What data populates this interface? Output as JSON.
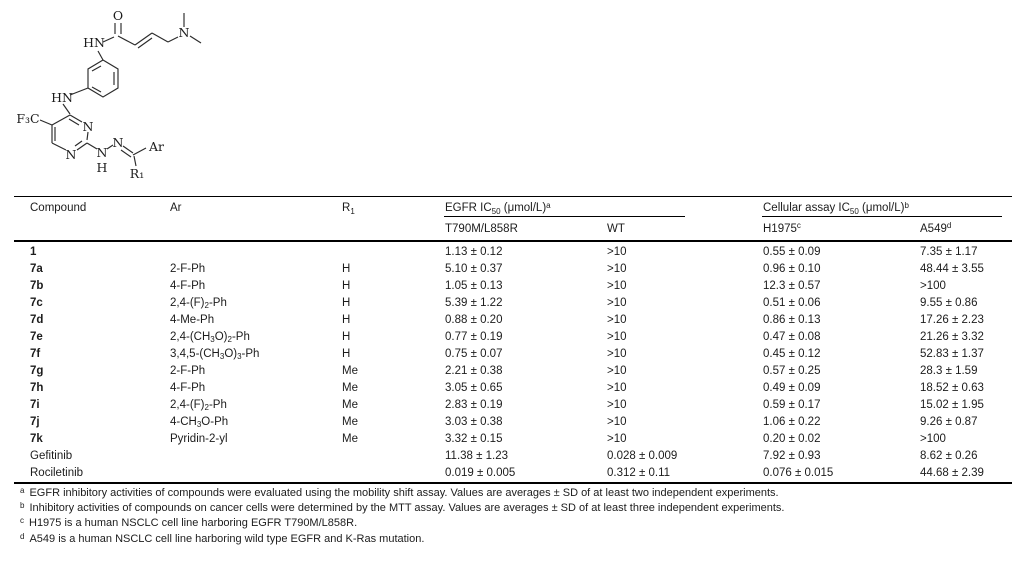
{
  "page": {
    "background": "#ffffff",
    "text_color": "#1c1c1c",
    "rule_color": "#000000"
  },
  "structure_figure": {
    "kind": "chemical-structure-drawing",
    "labels": {
      "carbonyl_oxygen": "O",
      "amide_nh": "HN",
      "dimethylamino_n": "N",
      "aniline_nh": "HN",
      "trifluoromethyl": "F₃C",
      "pyrimidine_n3": "N",
      "pyrimidine_n1": "N",
      "hydrazide_n": "N",
      "hydrazide_h": "H",
      "imine_n": "N",
      "aryl_substituent": "Ar",
      "r1_substituent": "R₁"
    }
  },
  "table": {
    "columns": {
      "compound": "Compound",
      "ar": "Ar",
      "r1": "R<sub>1</sub>",
      "egfr_group": "EGFR IC<sub>50</sub> (μmol/L)<sup>a</sup>",
      "t790m": "T790M/L858R",
      "wt": "WT",
      "cellular_group": "Cellular assay IC<sub>50</sub> (μmol/L)<sup>b</sup>",
      "h1975": "H1975<sup>c</sup>",
      "a549": "A549<sup>d</sup>"
    },
    "rows": [
      {
        "compound": "1",
        "bold": true,
        "ar": "",
        "r1": "",
        "t790m": "1.13 ± 0.12",
        "wt": ">10",
        "h1975": "0.55 ± 0.09",
        "a549": "7.35 ± 1.17"
      },
      {
        "compound": "7a",
        "bold": true,
        "ar": "2-F-Ph",
        "r1": "H",
        "t790m": "5.10 ± 0.37",
        "wt": ">10",
        "h1975": "0.96 ± 0.10",
        "a549": "48.44 ± 3.55"
      },
      {
        "compound": "7b",
        "bold": true,
        "ar": "4-F-Ph",
        "r1": "H",
        "t790m": "1.05 ± 0.13",
        "wt": ">10",
        "h1975": "12.3 ± 0.57",
        "a549": ">100"
      },
      {
        "compound": "7c",
        "bold": true,
        "ar": "2,4-(F)<sub>2</sub>-Ph",
        "r1": "H",
        "t790m": "5.39 ± 1.22",
        "wt": ">10",
        "h1975": "0.51 ± 0.06",
        "a549": "9.55 ± 0.86"
      },
      {
        "compound": "7d",
        "bold": true,
        "ar": "4-Me-Ph",
        "r1": "H",
        "t790m": "0.88 ± 0.20",
        "wt": ">10",
        "h1975": "0.86 ± 0.13",
        "a549": "17.26 ± 2.23"
      },
      {
        "compound": "7e",
        "bold": true,
        "ar": "2,4-(CH<sub>3</sub>O)<sub>2</sub>-Ph",
        "r1": "H",
        "t790m": "0.77 ± 0.19",
        "wt": ">10",
        "h1975": "0.47 ± 0.08",
        "a549": "21.26 ± 3.32"
      },
      {
        "compound": "7f",
        "bold": true,
        "ar": "3,4,5-(CH<sub>3</sub>O)<sub>3</sub>-Ph",
        "r1": "H",
        "t790m": "0.75 ± 0.07",
        "wt": ">10",
        "h1975": "0.45 ± 0.12",
        "a549": "52.83 ± 1.37"
      },
      {
        "compound": "7g",
        "bold": true,
        "ar": "2-F-Ph",
        "r1": "Me",
        "t790m": "2.21 ± 0.38",
        "wt": ">10",
        "h1975": "0.57 ± 0.25",
        "a549": "28.3 ± 1.59"
      },
      {
        "compound": "7h",
        "bold": true,
        "ar": "4-F-Ph",
        "r1": "Me",
        "t790m": "3.05 ± 0.65",
        "wt": ">10",
        "h1975": "0.49 ± 0.09",
        "a549": "18.52 ± 0.63"
      },
      {
        "compound": "7i",
        "bold": true,
        "ar": "2,4-(F)<sub>2</sub>-Ph",
        "r1": "Me",
        "t790m": "2.83 ± 0.19",
        "wt": ">10",
        "h1975": "0.59 ± 0.17",
        "a549": "15.02 ± 1.95"
      },
      {
        "compound": "7j",
        "bold": true,
        "ar": "4-CH<sub>3</sub>O-Ph",
        "r1": "Me",
        "t790m": "3.03 ± 0.38",
        "wt": ">10",
        "h1975": "1.06 ± 0.22",
        "a549": "9.26 ± 0.87"
      },
      {
        "compound": "7k",
        "bold": true,
        "ar": "Pyridin-2-yl",
        "r1": "Me",
        "t790m": "3.32 ± 0.15",
        "wt": ">10",
        "h1975": "0.20 ± 0.02",
        "a549": ">100"
      },
      {
        "compound": "Gefitinib",
        "bold": false,
        "ar": "",
        "r1": "",
        "t790m": "11.38 ± 1.23",
        "wt": "0.028 ± 0.009",
        "h1975": "7.92 ± 0.93",
        "a549": "8.62 ± 0.26"
      },
      {
        "compound": "Rociletinib",
        "bold": false,
        "ar": "",
        "r1": "",
        "t790m": "0.019 ± 0.005",
        "wt": "0.312 ± 0.11",
        "h1975": "0.076 ± 0.015",
        "a549": "44.68 ± 2.39"
      }
    ]
  },
  "footnotes": [
    {
      "mark": "a",
      "text": "EGFR inhibitory activities of compounds were evaluated using the mobility shift assay. Values are averages ± SD of at least two independent experiments."
    },
    {
      "mark": "b",
      "text": "Inhibitory activities of compounds on cancer cells were determined by the MTT assay. Values are averages ± SD of at least three independent experiments."
    },
    {
      "mark": "c",
      "text": "H1975 is a human NSCLC cell line harboring EGFR T790M/L858R."
    },
    {
      "mark": "d",
      "text": "A549 is a human NSCLC cell line harboring wild type EGFR and K-Ras mutation."
    }
  ]
}
